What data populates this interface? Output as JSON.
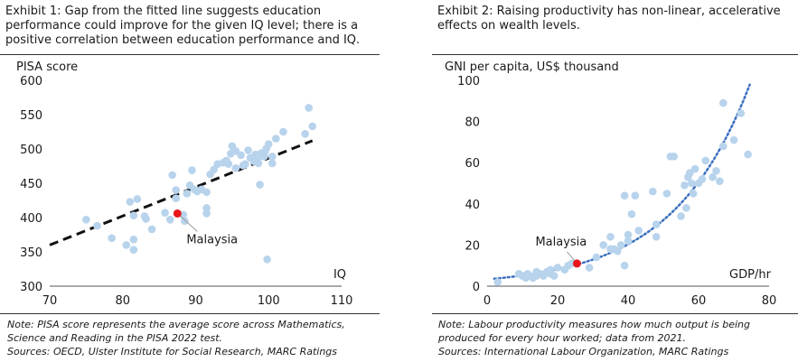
{
  "exhibit1": {
    "title": "Exhibit 1: Gap from the fitted line suggests education performance could improve for the given IQ level; there is a positive correlation between education performance and IQ.",
    "note": "Note: PISA score represents the average score across Mathematics, Science and Reading in the PISA 2022 test.",
    "sources": "Sources: OECD, Ulster Institute for Social Research, MARC Ratings"
  },
  "exhibit2": {
    "title": "Exhibit 2: Raising productivity has non-linear, accelerative effects on wealth levels.",
    "note": "Note: Labour productivity measures how much output is being produced for every hour worked; data from 2021.",
    "sources": "Sources: International Labour Organization, MARC Ratings"
  },
  "chart_data": [
    {
      "type": "scatter",
      "title": "",
      "xlabel": "IQ",
      "ylabel": "PISA score",
      "xlim": [
        70,
        110
      ],
      "ylim": [
        300,
        600
      ],
      "x_ticks": [
        70,
        80,
        90,
        100,
        110
      ],
      "y_ticks": [
        300,
        350,
        400,
        450,
        500,
        550,
        600
      ],
      "grid": false,
      "colors": {
        "points": "#b8d3ec",
        "highlight": "#e8161c",
        "trend": "#111111"
      },
      "trendline": {
        "style": "dashed",
        "points": [
          [
            70,
            360
          ],
          [
            106,
            512
          ]
        ]
      },
      "highlight": {
        "label": "Malaysia",
        "x": 87.5,
        "y": 406
      },
      "points": [
        [
          75,
          397
        ],
        [
          76.5,
          388
        ],
        [
          78.5,
          370
        ],
        [
          80.5,
          360
        ],
        [
          81,
          423
        ],
        [
          81.5,
          403
        ],
        [
          81.5,
          368
        ],
        [
          81.5,
          353
        ],
        [
          82,
          427
        ],
        [
          83,
          402
        ],
        [
          83.2,
          398
        ],
        [
          84,
          383
        ],
        [
          85.8,
          407
        ],
        [
          86.5,
          397
        ],
        [
          86.8,
          462
        ],
        [
          87.3,
          440
        ],
        [
          87.3,
          428
        ],
        [
          88.3,
          404
        ],
        [
          88.5,
          395
        ],
        [
          88.8,
          435
        ],
        [
          89.2,
          447
        ],
        [
          89.5,
          469
        ],
        [
          89.8,
          441
        ],
        [
          90.2,
          438
        ],
        [
          90.8,
          441
        ],
        [
          91.5,
          437
        ],
        [
          91.5,
          414
        ],
        [
          91.5,
          406
        ],
        [
          92,
          463
        ],
        [
          92.5,
          470
        ],
        [
          93,
          478
        ],
        [
          93.8,
          480
        ],
        [
          94.2,
          483
        ],
        [
          94.5,
          478
        ],
        [
          94.8,
          493
        ],
        [
          95,
          504
        ],
        [
          95.5,
          472
        ],
        [
          95.5,
          497
        ],
        [
          96.2,
          491
        ],
        [
          96.5,
          476
        ],
        [
          96.8,
          478
        ],
        [
          97.2,
          498
        ],
        [
          97.5,
          487
        ],
        [
          98,
          482
        ],
        [
          98.2,
          492
        ],
        [
          98.5,
          485
        ],
        [
          98.6,
          479
        ],
        [
          98.8,
          448
        ],
        [
          99,
          494
        ],
        [
          99.2,
          491
        ],
        [
          99.4,
          489
        ],
        [
          99.5,
          496
        ],
        [
          99.7,
          501
        ],
        [
          100,
          507
        ],
        [
          100.5,
          479
        ],
        [
          100.5,
          489
        ],
        [
          101,
          515
        ],
        [
          102,
          525
        ],
        [
          105,
          522
        ],
        [
          105.5,
          560
        ],
        [
          106,
          533
        ],
        [
          99.8,
          339
        ]
      ]
    },
    {
      "type": "scatter",
      "title": "",
      "xlabel": "GDP/hr",
      "ylabel": "GNI per capita, US$ thousand",
      "xlim": [
        0,
        80
      ],
      "ylim": [
        0,
        100
      ],
      "x_ticks": [
        0,
        20,
        40,
        60,
        80
      ],
      "y_ticks": [
        0,
        20,
        40,
        60,
        80,
        100
      ],
      "grid": false,
      "colors": {
        "points": "#b8d3ec",
        "highlight": "#e8161c",
        "trend": "#3a6fbf"
      },
      "trendline": {
        "style": "dotted",
        "type": "exponential",
        "a": 3.3,
        "b": 0.0455,
        "x_range": [
          2,
          75
        ]
      },
      "highlight": {
        "label": "Malaysia",
        "x": 25.5,
        "y": 11
      },
      "points": [
        [
          3,
          2
        ],
        [
          9,
          6
        ],
        [
          10,
          5
        ],
        [
          11,
          4
        ],
        [
          11.5,
          6
        ],
        [
          12,
          5
        ],
        [
          13,
          4
        ],
        [
          14,
          5
        ],
        [
          14,
          7
        ],
        [
          15,
          6
        ],
        [
          16,
          5
        ],
        [
          17,
          7
        ],
        [
          18,
          8
        ],
        [
          18,
          6
        ],
        [
          19,
          5
        ],
        [
          20,
          9
        ],
        [
          22,
          8
        ],
        [
          23,
          10
        ],
        [
          24,
          11
        ],
        [
          29,
          9
        ],
        [
          31,
          14
        ],
        [
          33,
          20
        ],
        [
          35,
          18
        ],
        [
          35,
          24
        ],
        [
          36,
          18
        ],
        [
          37,
          17
        ],
        [
          38,
          20
        ],
        [
          39,
          10
        ],
        [
          39,
          44
        ],
        [
          40,
          25
        ],
        [
          40,
          22
        ],
        [
          41,
          35
        ],
        [
          42,
          44
        ],
        [
          43,
          27
        ],
        [
          47,
          46
        ],
        [
          48,
          24
        ],
        [
          48,
          30
        ],
        [
          51,
          45
        ],
        [
          52,
          63
        ],
        [
          53,
          63
        ],
        [
          55,
          34
        ],
        [
          56,
          49
        ],
        [
          56.5,
          38
        ],
        [
          57,
          53
        ],
        [
          57.5,
          55
        ],
        [
          58,
          50
        ],
        [
          58.5,
          45
        ],
        [
          59,
          57
        ],
        [
          60,
          50
        ],
        [
          61,
          52
        ],
        [
          62,
          61
        ],
        [
          64,
          53
        ],
        [
          65,
          56
        ],
        [
          66,
          51
        ],
        [
          67,
          89
        ],
        [
          67,
          68
        ],
        [
          70,
          71
        ],
        [
          72,
          84
        ],
        [
          74,
          64
        ]
      ]
    }
  ]
}
